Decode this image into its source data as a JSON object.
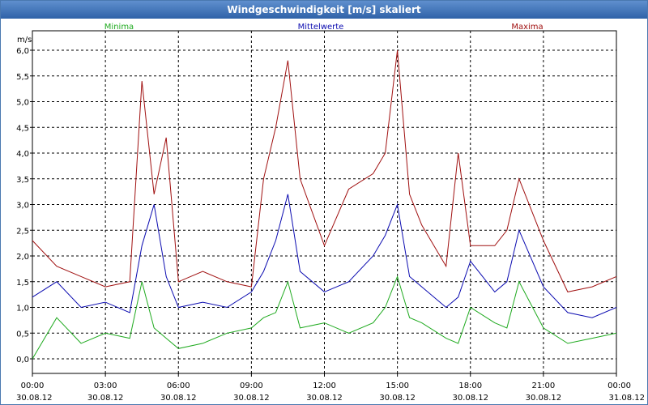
{
  "window": {
    "title": "Windgeschwindigkeit [m/s] skaliert"
  },
  "chart_data": {
    "type": "line",
    "title": "Windgeschwindigkeit [m/s] skaliert",
    "ylabel": "m/s",
    "xlabel": "",
    "ylim": [
      0,
      6.0
    ],
    "xlim": [
      0,
      24
    ],
    "grid": true,
    "legend_placement": "top",
    "y_ticks": [
      {
        "value": 0.0,
        "label": "0,0"
      },
      {
        "value": 0.5,
        "label": "0,5"
      },
      {
        "value": 1.0,
        "label": "1,0"
      },
      {
        "value": 1.5,
        "label": "1,5"
      },
      {
        "value": 2.0,
        "label": "2,0"
      },
      {
        "value": 2.5,
        "label": "2,5"
      },
      {
        "value": 3.0,
        "label": "3,0"
      },
      {
        "value": 3.5,
        "label": "3,5"
      },
      {
        "value": 4.0,
        "label": "4,0"
      },
      {
        "value": 4.5,
        "label": "4,5"
      },
      {
        "value": 5.0,
        "label": "5,0"
      },
      {
        "value": 5.5,
        "label": "5,5"
      },
      {
        "value": 6.0,
        "label": "6,0"
      }
    ],
    "x_ticks": [
      {
        "value": 0,
        "time": "00:00",
        "date": "30.08.12"
      },
      {
        "value": 3,
        "time": "03:00",
        "date": "30.08.12"
      },
      {
        "value": 6,
        "time": "06:00",
        "date": "30.08.12"
      },
      {
        "value": 9,
        "time": "09:00",
        "date": "30.08.12"
      },
      {
        "value": 12,
        "time": "12:00",
        "date": "30.08.12"
      },
      {
        "value": 15,
        "time": "15:00",
        "date": "30.08.12"
      },
      {
        "value": 18,
        "time": "18:00",
        "date": "30.08.12"
      },
      {
        "value": 21,
        "time": "21:00",
        "date": "30.08.12"
      },
      {
        "value": 24,
        "time": "00:00",
        "date": "31.08.12"
      }
    ],
    "x": [
      0,
      1,
      2,
      3,
      4,
      4.5,
      5,
      5.5,
      6,
      7,
      8,
      9,
      9.5,
      10,
      10.5,
      11,
      12,
      13,
      14,
      14.5,
      15,
      15.5,
      16,
      17,
      17.5,
      18,
      19,
      19.5,
      20,
      21,
      22,
      23,
      24
    ],
    "series": [
      {
        "name": "Minima",
        "color": "#1faa1f",
        "values": [
          0.0,
          0.8,
          0.3,
          0.5,
          0.4,
          1.5,
          0.6,
          0.4,
          0.2,
          0.3,
          0.5,
          0.6,
          0.8,
          0.9,
          1.5,
          0.6,
          0.7,
          0.5,
          0.7,
          1.0,
          1.6,
          0.8,
          0.7,
          0.4,
          0.3,
          1.0,
          0.7,
          0.6,
          1.5,
          0.6,
          0.3,
          0.4,
          0.5
        ]
      },
      {
        "name": "Mittelwerte",
        "color": "#0a0ab0",
        "values": [
          1.2,
          1.5,
          1.0,
          1.1,
          0.9,
          2.2,
          3.0,
          1.6,
          1.0,
          1.1,
          1.0,
          1.3,
          1.7,
          2.3,
          3.2,
          1.7,
          1.3,
          1.5,
          2.0,
          2.4,
          3.0,
          1.6,
          1.4,
          1.0,
          1.2,
          1.9,
          1.3,
          1.5,
          2.5,
          1.4,
          0.9,
          0.8,
          1.0
        ]
      },
      {
        "name": "Maxima",
        "color": "#a01010",
        "values": [
          2.3,
          1.8,
          1.6,
          1.4,
          1.5,
          5.4,
          3.2,
          4.3,
          1.5,
          1.7,
          1.5,
          1.4,
          3.5,
          4.5,
          5.8,
          3.5,
          2.2,
          3.3,
          3.6,
          4.0,
          6.0,
          3.2,
          2.6,
          1.8,
          4.0,
          2.2,
          2.2,
          2.5,
          3.5,
          2.3,
          1.3,
          1.4,
          1.6
        ]
      }
    ]
  }
}
